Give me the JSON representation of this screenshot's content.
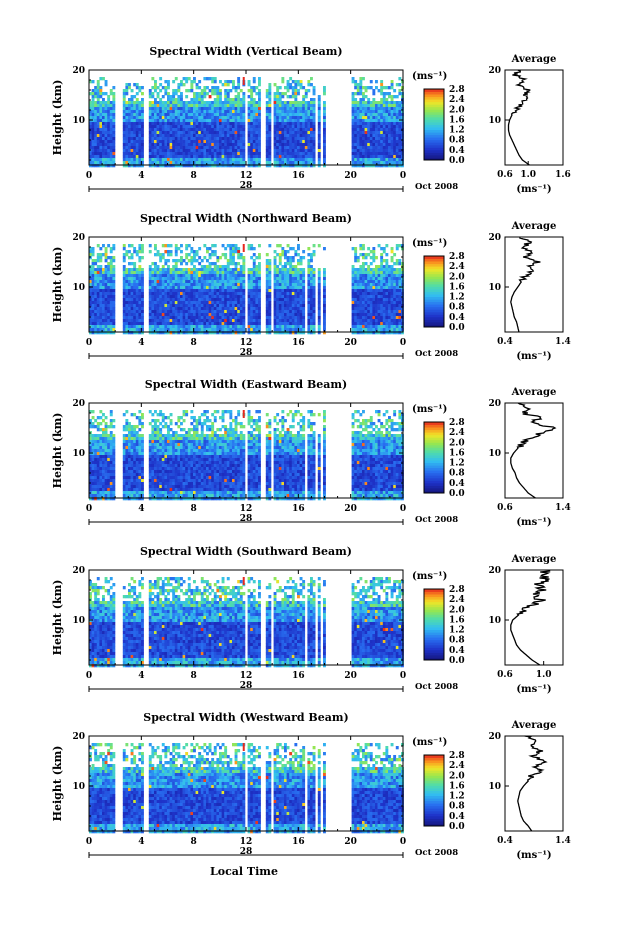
{
  "chart_data": [
    {
      "type": "heatmap",
      "title": "Spectral Width (Vertical Beam)",
      "ylabel": "Height (km)",
      "unit_label": "(ms⁻¹)",
      "xlim": [
        0,
        24
      ],
      "ylim": [
        1,
        20
      ],
      "x_ticks": [
        "0",
        "4",
        "8",
        "12",
        "16",
        "20",
        "0"
      ],
      "y_ticks": [
        "10",
        "20"
      ],
      "date_marker": "28",
      "date_label": "Oct 2008",
      "colorbar_ticks": [
        "0.0",
        "0.4",
        "0.8",
        "1.2",
        "1.6",
        "2.0",
        "2.4",
        "2.8"
      ],
      "colorbar_range": [
        0.0,
        2.8
      ],
      "data_gaps_hours": [
        [
          1.9,
          2.4
        ],
        [
          4.0,
          4.4
        ],
        [
          11.8,
          12.1
        ],
        [
          13.1,
          13.5
        ],
        [
          13.8,
          14.1
        ],
        [
          17.1,
          17.3
        ],
        [
          17.6,
          17.8
        ],
        [
          17.9,
          20.0
        ]
      ],
      "upper_cutoff_km": 18.6,
      "average_profile": {
        "title": "Average",
        "xlim": [
          0.6,
          1.6
        ],
        "x_ticks": [
          "0.6",
          "1.0",
          "1.6"
        ],
        "y_ticks": [
          "10",
          "20"
        ],
        "xlabel": "(ms⁻¹)",
        "height_km": [
          1,
          2,
          3,
          4,
          5,
          6,
          7,
          8,
          9,
          10,
          11,
          12,
          13,
          14,
          15,
          16,
          17,
          18,
          19,
          20
        ],
        "width_ms": [
          1.02,
          0.9,
          0.84,
          0.8,
          0.76,
          0.72,
          0.68,
          0.66,
          0.66,
          0.68,
          0.72,
          0.82,
          0.86,
          0.96,
          0.92,
          1.02,
          0.84,
          0.92,
          0.78,
          0.82
        ]
      }
    },
    {
      "type": "heatmap",
      "title": "Spectral Width (Northward Beam)",
      "ylabel": "Height (km)",
      "unit_label": "(ms⁻¹)",
      "xlim": [
        0,
        24
      ],
      "ylim": [
        1,
        20
      ],
      "x_ticks": [
        "0",
        "4",
        "8",
        "12",
        "16",
        "20",
        "0"
      ],
      "y_ticks": [
        "10",
        "20"
      ],
      "date_marker": "28",
      "date_label": "Oct 2008",
      "colorbar_ticks": [
        "0.0",
        "0.4",
        "0.8",
        "1.2",
        "1.6",
        "2.0",
        "2.4",
        "2.8"
      ],
      "colorbar_range": [
        0.0,
        2.8
      ],
      "data_gaps_hours": [
        [
          1.9,
          2.4
        ],
        [
          4.0,
          4.4
        ],
        [
          11.8,
          12.1
        ],
        [
          13.1,
          13.5
        ],
        [
          13.8,
          14.1
        ],
        [
          16.3,
          16.5
        ],
        [
          17.1,
          17.3
        ],
        [
          17.6,
          17.8
        ],
        [
          17.9,
          20.0
        ]
      ],
      "upper_cutoff_km": 18.6,
      "average_profile": {
        "title": "Average",
        "xlim": [
          0.4,
          1.4
        ],
        "x_ticks": [
          "0.4",
          "1.4"
        ],
        "y_ticks": [
          "10",
          "20"
        ],
        "xlabel": "(ms⁻¹)",
        "height_km": [
          1,
          2,
          3,
          4,
          5,
          6,
          7,
          8,
          9,
          10,
          11,
          12,
          13,
          14,
          15,
          16,
          17,
          18,
          19,
          20
        ],
        "width_ms": [
          0.64,
          0.62,
          0.6,
          0.56,
          0.54,
          0.52,
          0.5,
          0.52,
          0.56,
          0.62,
          0.68,
          0.74,
          0.86,
          0.82,
          0.96,
          0.74,
          0.86,
          0.7,
          0.84,
          0.66
        ]
      }
    },
    {
      "type": "heatmap",
      "title": "Spectral Width (Eastward Beam)",
      "ylabel": "Height (km)",
      "unit_label": "(ms⁻¹)",
      "xlim": [
        0,
        24
      ],
      "ylim": [
        1,
        20
      ],
      "x_ticks": [
        "0",
        "4",
        "8",
        "12",
        "16",
        "20",
        "0"
      ],
      "y_ticks": [
        "10",
        "20"
      ],
      "date_marker": "28",
      "date_label": "Oct 2008",
      "colorbar_ticks": [
        "0.0",
        "0.4",
        "0.8",
        "1.2",
        "1.6",
        "2.0",
        "2.4",
        "2.8"
      ],
      "colorbar_range": [
        0.0,
        2.8
      ],
      "data_gaps_hours": [
        [
          1.9,
          2.4
        ],
        [
          4.0,
          4.4
        ],
        [
          11.8,
          12.1
        ],
        [
          13.1,
          13.5
        ],
        [
          13.8,
          14.1
        ],
        [
          16.3,
          16.5
        ],
        [
          17.1,
          17.3
        ],
        [
          17.6,
          17.8
        ],
        [
          17.9,
          20.0
        ]
      ],
      "upper_cutoff_km": 18.6,
      "average_profile": {
        "title": "Average",
        "xlim": [
          0.6,
          1.4
        ],
        "x_ticks": [
          "0.6",
          "1.4"
        ],
        "y_ticks": [
          "10",
          "20"
        ],
        "xlabel": "(ms⁻¹)",
        "height_km": [
          1,
          2,
          3,
          4,
          5,
          6,
          7,
          8,
          9,
          10,
          11,
          12,
          13,
          14,
          15,
          16,
          17,
          18,
          19,
          20
        ],
        "width_ms": [
          1.02,
          0.92,
          0.86,
          0.8,
          0.76,
          0.74,
          0.7,
          0.68,
          0.68,
          0.72,
          0.78,
          0.86,
          0.94,
          1.1,
          1.3,
          0.96,
          1.08,
          0.86,
          0.94,
          0.78
        ]
      }
    },
    {
      "type": "heatmap",
      "title": "Spectral Width (Southward Beam)",
      "ylabel": "Height (km)",
      "unit_label": "(ms⁻¹)",
      "xlim": [
        0,
        24
      ],
      "ylim": [
        1,
        20
      ],
      "x_ticks": [
        "0",
        "4",
        "8",
        "12",
        "16",
        "20",
        "0"
      ],
      "y_ticks": [
        "10",
        "20"
      ],
      "date_marker": "28",
      "date_label": "Oct 2008",
      "colorbar_ticks": [
        "0.0",
        "0.4",
        "0.8",
        "1.2",
        "1.6",
        "2.0",
        "2.4",
        "2.8"
      ],
      "colorbar_range": [
        0.0,
        2.8
      ],
      "data_gaps_hours": [
        [
          1.9,
          2.4
        ],
        [
          4.0,
          4.4
        ],
        [
          11.8,
          12.1
        ],
        [
          13.1,
          13.5
        ],
        [
          13.8,
          14.1
        ],
        [
          16.3,
          16.5
        ],
        [
          17.1,
          17.3
        ],
        [
          17.6,
          17.8
        ],
        [
          17.9,
          20.0
        ]
      ],
      "upper_cutoff_km": 18.6,
      "average_profile": {
        "title": "Average",
        "xlim": [
          0.6,
          1.2
        ],
        "x_ticks": [
          "0.6",
          "1.0"
        ],
        "y_ticks": [
          "10",
          "20"
        ],
        "xlabel": "(ms⁻¹)",
        "height_km": [
          1,
          2,
          3,
          4,
          5,
          6,
          7,
          8,
          9,
          10,
          11,
          12,
          13,
          14,
          15,
          16,
          17,
          18,
          19,
          20
        ],
        "width_ms": [
          0.96,
          0.88,
          0.82,
          0.76,
          0.72,
          0.7,
          0.68,
          0.66,
          0.66,
          0.68,
          0.74,
          0.8,
          0.88,
          0.98,
          0.9,
          1.02,
          0.92,
          1.04,
          0.96,
          1.06
        ]
      }
    },
    {
      "type": "heatmap",
      "title": "Spectral Width (Westward Beam)",
      "ylabel": "Height (km)",
      "unit_label": "(ms⁻¹)",
      "xlim": [
        0,
        24
      ],
      "ylim": [
        1,
        20
      ],
      "x_ticks": [
        "0",
        "4",
        "8",
        "12",
        "16",
        "20",
        "0"
      ],
      "y_ticks": [
        "10",
        "20"
      ],
      "date_marker": "28",
      "date_label": "Oct 2008",
      "xlabel": "Local Time",
      "colorbar_ticks": [
        "0.0",
        "0.4",
        "0.8",
        "1.2",
        "1.6",
        "2.0",
        "2.4",
        "2.8"
      ],
      "colorbar_range": [
        0.0,
        2.8
      ],
      "data_gaps_hours": [
        [
          1.9,
          2.4
        ],
        [
          4.0,
          4.4
        ],
        [
          11.8,
          12.1
        ],
        [
          13.1,
          13.5
        ],
        [
          13.8,
          14.1
        ],
        [
          16.3,
          16.5
        ],
        [
          17.1,
          17.3
        ],
        [
          17.6,
          17.8
        ],
        [
          17.9,
          20.0
        ]
      ],
      "upper_cutoff_km": 18.6,
      "average_profile": {
        "title": "Average",
        "xlim": [
          0.4,
          1.4
        ],
        "x_ticks": [
          "0.4",
          "1.4"
        ],
        "y_ticks": [
          "10",
          "20"
        ],
        "xlabel": "(ms⁻¹)",
        "height_km": [
          1,
          2,
          3,
          4,
          5,
          6,
          7,
          8,
          9,
          10,
          11,
          12,
          13,
          14,
          15,
          16,
          17,
          18,
          19,
          20
        ],
        "width_ms": [
          0.86,
          0.8,
          0.72,
          0.68,
          0.66,
          0.64,
          0.62,
          0.64,
          0.66,
          0.72,
          0.8,
          0.86,
          1.0,
          0.92,
          1.08,
          0.88,
          1.02,
          0.84,
          0.96,
          0.74
        ]
      }
    }
  ]
}
